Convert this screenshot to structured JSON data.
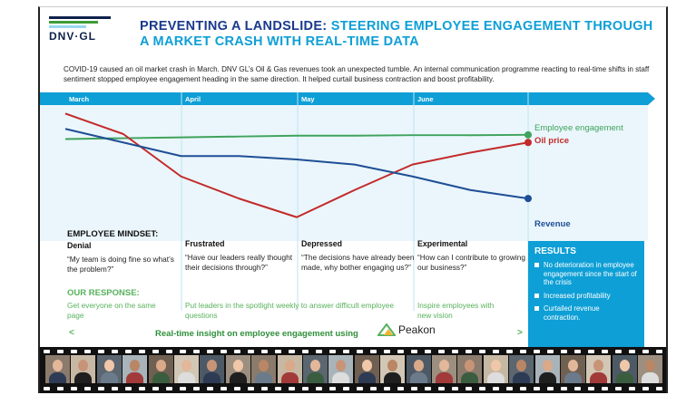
{
  "logo": {
    "name": "DNV·GL",
    "stripe_colors": [
      "#0f204b",
      "#3f9c35",
      "#99d9f0"
    ]
  },
  "title": {
    "part1": "PREVENTING A LANDSLIDE:",
    "part2": "STEERING EMPLOYEE ENGAGEMENT THROUGH A MARKET CRASH WITH REAL-TIME DATA"
  },
  "intro": "COVID-19 caused an oil market crash in March. DNV GL’s Oil & Gas revenues took an unexpected tumble. An internal communication programme reacting to real-time shifts in staff sentiment stopped employee engagement heading in the same direction. It helped curtail business contraction and boost profitability.",
  "months": [
    "March",
    "April",
    "May",
    "June"
  ],
  "chart_data": {
    "type": "line",
    "x": [
      0,
      0.5,
      1,
      1.5,
      2,
      2.5,
      3,
      3.5,
      4
    ],
    "series": [
      {
        "name": "Employee engagement",
        "color": "#3fa35b",
        "values": [
          60,
          60.5,
          61,
          61.5,
          62,
          62,
          62.3,
          62.3,
          62.5
        ]
      },
      {
        "name": "Oil price",
        "color": "#c32a2a",
        "values": [
          75,
          63,
          38,
          25,
          14,
          30,
          45,
          52,
          58
        ]
      },
      {
        "name": "Revenue",
        "color": "#1f4e95",
        "values": [
          66,
          58,
          50,
          50,
          48,
          45,
          38,
          30,
          25
        ]
      }
    ]
  },
  "mindset": {
    "heading": "EMPLOYEE MINDSET:",
    "columns": [
      {
        "label": "Denial",
        "quote": "“My team is doing fine so what’s the problem?”"
      },
      {
        "label": "Frustrated",
        "quote": "“Have our leaders really thought their decisions through?”"
      },
      {
        "label": "Depressed",
        "quote": "“The decisions have already been made, why bother engaging us?”"
      },
      {
        "label": "Experimental",
        "quote": "“How can I contribute to growing our business?”"
      }
    ]
  },
  "response": {
    "heading": "OUR RESPONSE:",
    "items": [
      "Get everyone on the same page",
      "Put leaders in the spotlight weekly to answer difficult employee questions",
      "Inspire employees with new vision"
    ]
  },
  "results": {
    "title": "RESULTS",
    "items": [
      "No deterioration in employee engagement since the start of the crisis",
      "Increased profitability",
      "Curtailed revenue contraction."
    ]
  },
  "bottom": {
    "text": "Real-time insight on employee engagement using",
    "brand": "Peakon",
    "prev": "<",
    "next": ">"
  },
  "video_tiles": 24
}
